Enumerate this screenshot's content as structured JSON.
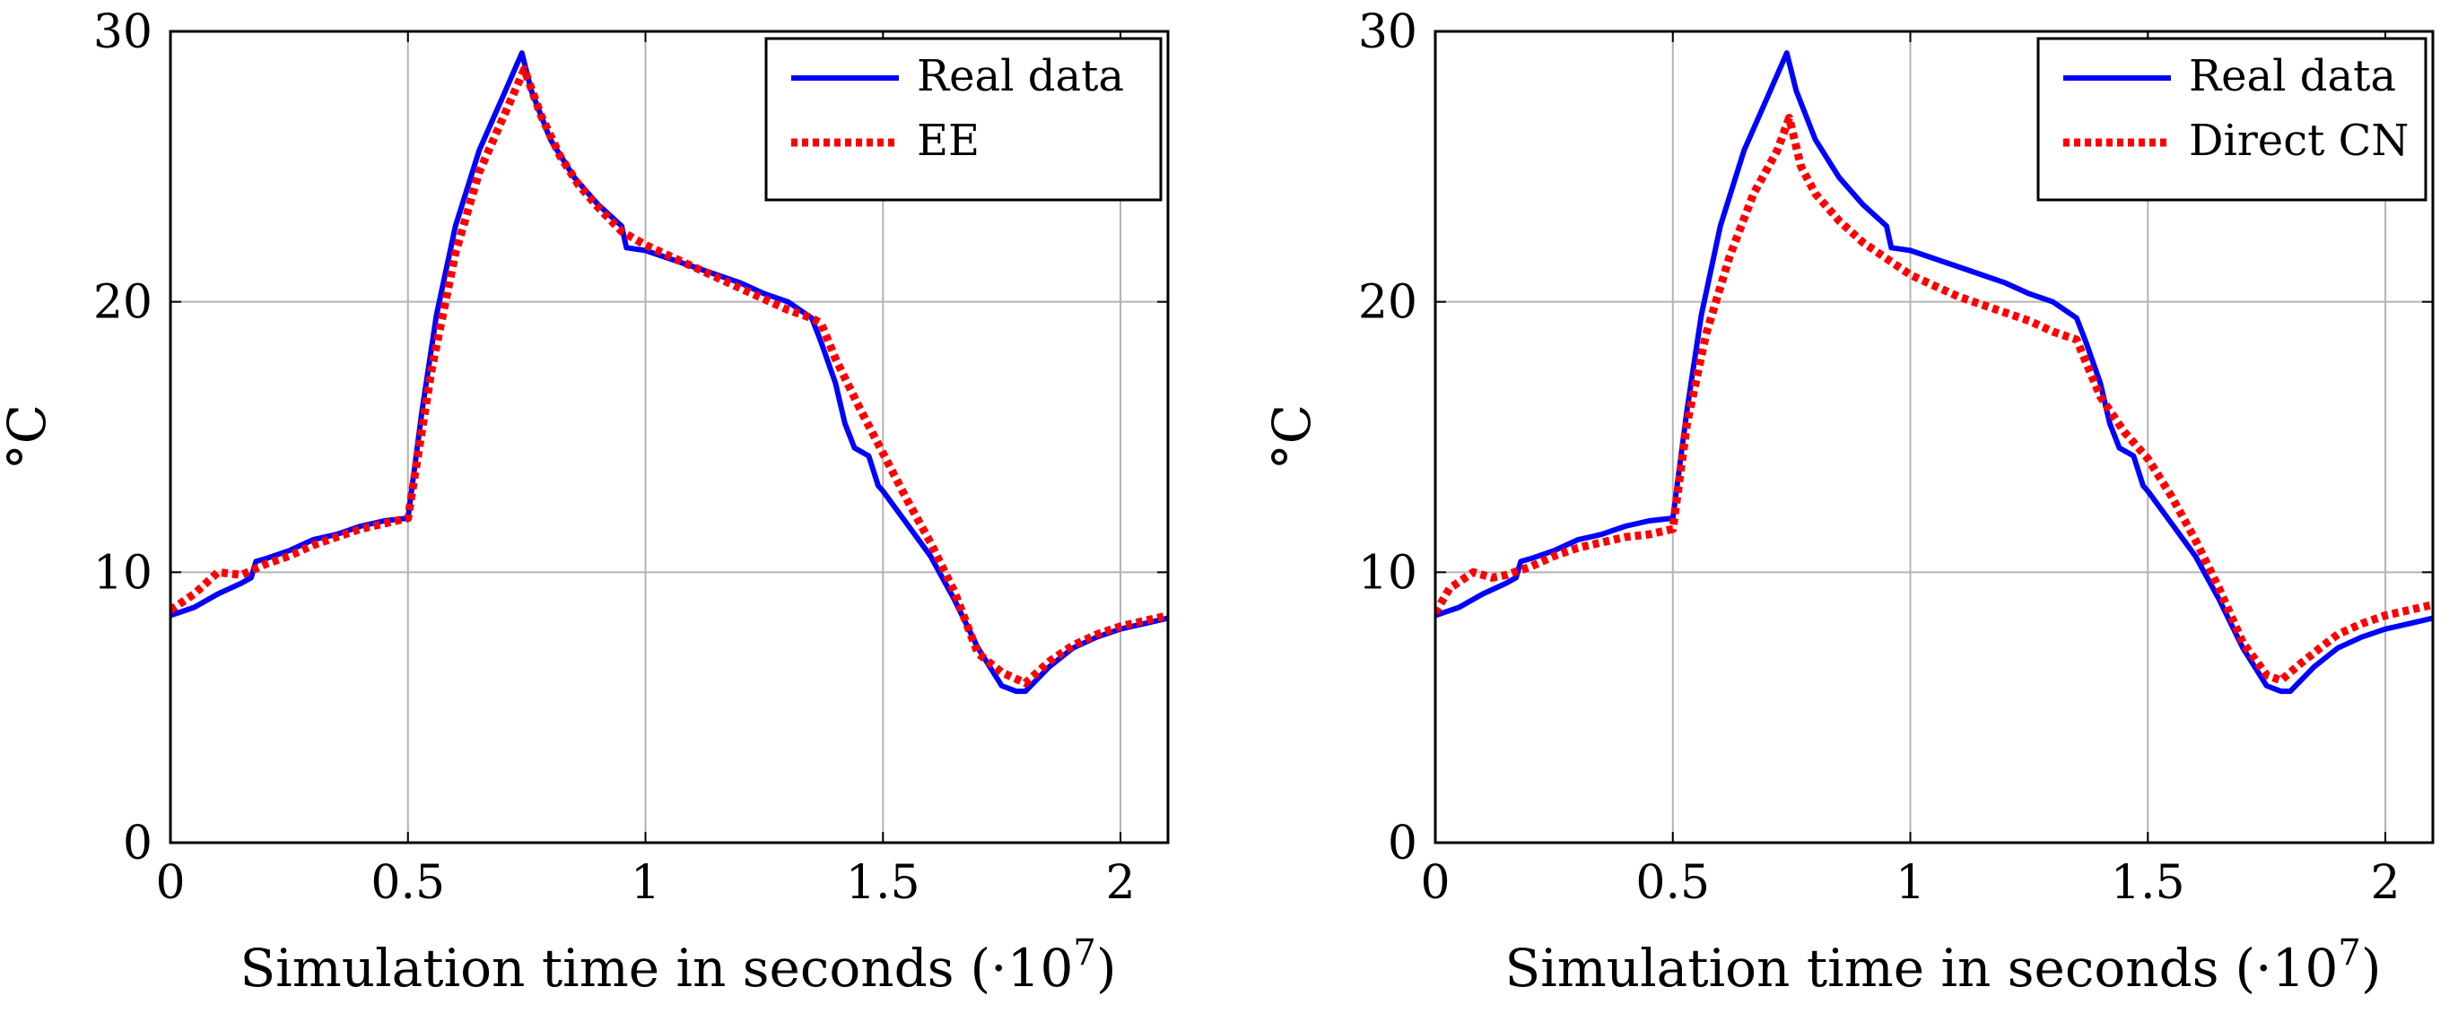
{
  "chart_data": [
    {
      "type": "line",
      "xlabel": "Simulation time in seconds",
      "xlabel_suffix": "(·10",
      "xlabel_exp": "7",
      "xlabel_close": ")",
      "ylabel": "°C",
      "xlim": [
        0,
        2.1
      ],
      "ylim": [
        0,
        30
      ],
      "xticks": [
        0,
        0.5,
        1,
        1.5,
        2
      ],
      "xtick_labels": [
        "0",
        "0.5",
        "1",
        "1.5",
        "2"
      ],
      "yticks": [
        0,
        10,
        20,
        30
      ],
      "ytick_labels": [
        "0",
        "10",
        "20",
        "30"
      ],
      "grid": true,
      "legend_position": "top-right",
      "series": [
        {
          "name": "Real data",
          "color": "#0000ff",
          "style": "solid",
          "x": [
            0,
            0.05,
            0.1,
            0.15,
            0.17,
            0.18,
            0.2,
            0.25,
            0.3,
            0.35,
            0.4,
            0.45,
            0.5,
            0.53,
            0.56,
            0.6,
            0.65,
            0.7,
            0.74,
            0.76,
            0.8,
            0.85,
            0.9,
            0.95,
            0.96,
            1.0,
            1.05,
            1.1,
            1.15,
            1.2,
            1.25,
            1.3,
            1.35,
            1.37,
            1.4,
            1.42,
            1.44,
            1.47,
            1.49,
            1.5,
            1.55,
            1.6,
            1.65,
            1.7,
            1.75,
            1.78,
            1.8,
            1.85,
            1.9,
            1.95,
            2.0,
            2.05,
            2.1
          ],
          "y": [
            8.4,
            8.7,
            9.2,
            9.6,
            9.8,
            10.4,
            10.5,
            10.8,
            11.2,
            11.4,
            11.7,
            11.9,
            12.0,
            16.0,
            19.5,
            22.8,
            25.6,
            27.6,
            29.2,
            27.8,
            26.0,
            24.6,
            23.6,
            22.8,
            22.0,
            21.9,
            21.6,
            21.3,
            21.0,
            20.7,
            20.3,
            20.0,
            19.4,
            18.5,
            17.0,
            15.5,
            14.6,
            14.3,
            13.2,
            13.0,
            11.8,
            10.6,
            9.0,
            7.2,
            5.8,
            5.6,
            5.6,
            6.5,
            7.2,
            7.6,
            7.9,
            8.1,
            8.3
          ]
        },
        {
          "name": "EE",
          "color": "#ff0000",
          "style": "dotted",
          "x": [
            0,
            0.05,
            0.1,
            0.15,
            0.2,
            0.25,
            0.3,
            0.35,
            0.4,
            0.45,
            0.5,
            0.55,
            0.6,
            0.65,
            0.7,
            0.745,
            0.78,
            0.82,
            0.86,
            0.9,
            0.95,
            1.0,
            1.05,
            1.1,
            1.15,
            1.2,
            1.25,
            1.3,
            1.35,
            1.37,
            1.4,
            1.45,
            1.5,
            1.55,
            1.6,
            1.65,
            1.7,
            1.75,
            1.8,
            1.85,
            1.9,
            1.95,
            2.0,
            2.05,
            2.1
          ],
          "y": [
            8.6,
            9.2,
            10.0,
            9.9,
            10.3,
            10.6,
            11.0,
            11.3,
            11.6,
            11.8,
            12.0,
            17.5,
            21.8,
            24.8,
            26.8,
            28.6,
            26.9,
            25.4,
            24.3,
            23.5,
            22.6,
            22.1,
            21.7,
            21.3,
            20.9,
            20.5,
            20.1,
            19.7,
            19.4,
            19.2,
            17.9,
            16.1,
            14.4,
            12.7,
            11.1,
            9.3,
            7.0,
            6.3,
            5.9,
            6.7,
            7.3,
            7.7,
            8.0,
            8.2,
            8.4
          ]
        }
      ]
    },
    {
      "type": "line",
      "xlabel": "Simulation time in seconds",
      "xlabel_suffix": "(·10",
      "xlabel_exp": "7",
      "xlabel_close": ")",
      "ylabel": "°C",
      "xlim": [
        0,
        2.1
      ],
      "ylim": [
        0,
        30
      ],
      "xticks": [
        0,
        0.5,
        1,
        1.5,
        2
      ],
      "xtick_labels": [
        "0",
        "0.5",
        "1",
        "1.5",
        "2"
      ],
      "yticks": [
        0,
        10,
        20,
        30
      ],
      "ytick_labels": [
        "0",
        "10",
        "20",
        "30"
      ],
      "grid": true,
      "legend_position": "top-right",
      "series": [
        {
          "name": "Real data",
          "color": "#0000ff",
          "style": "solid",
          "x": [
            0,
            0.05,
            0.1,
            0.15,
            0.17,
            0.18,
            0.2,
            0.25,
            0.3,
            0.35,
            0.4,
            0.45,
            0.5,
            0.53,
            0.56,
            0.6,
            0.65,
            0.7,
            0.74,
            0.76,
            0.8,
            0.85,
            0.9,
            0.95,
            0.96,
            1.0,
            1.05,
            1.1,
            1.15,
            1.2,
            1.25,
            1.3,
            1.35,
            1.37,
            1.4,
            1.42,
            1.44,
            1.47,
            1.49,
            1.5,
            1.55,
            1.6,
            1.65,
            1.7,
            1.75,
            1.78,
            1.8,
            1.85,
            1.9,
            1.95,
            2.0,
            2.05,
            2.1
          ],
          "y": [
            8.4,
            8.7,
            9.2,
            9.6,
            9.8,
            10.4,
            10.5,
            10.8,
            11.2,
            11.4,
            11.7,
            11.9,
            12.0,
            16.0,
            19.5,
            22.8,
            25.6,
            27.6,
            29.2,
            27.8,
            26.0,
            24.6,
            23.6,
            22.8,
            22.0,
            21.9,
            21.6,
            21.3,
            21.0,
            20.7,
            20.3,
            20.0,
            19.4,
            18.5,
            17.0,
            15.5,
            14.6,
            14.3,
            13.2,
            13.0,
            11.8,
            10.6,
            9.0,
            7.2,
            5.8,
            5.6,
            5.6,
            6.5,
            7.2,
            7.6,
            7.9,
            8.1,
            8.3
          ]
        },
        {
          "name": "Direct CN",
          "color": "#ff0000",
          "style": "dotted",
          "x": [
            0,
            0.03,
            0.08,
            0.12,
            0.15,
            0.2,
            0.25,
            0.3,
            0.35,
            0.4,
            0.45,
            0.5,
            0.53,
            0.57,
            0.62,
            0.67,
            0.72,
            0.745,
            0.77,
            0.8,
            0.85,
            0.9,
            0.95,
            1.0,
            1.05,
            1.1,
            1.15,
            1.2,
            1.25,
            1.3,
            1.35,
            1.4,
            1.45,
            1.5,
            1.55,
            1.6,
            1.65,
            1.7,
            1.75,
            1.78,
            1.82,
            1.87,
            1.9,
            1.95,
            2.0,
            2.05,
            2.1
          ],
          "y": [
            8.5,
            9.4,
            10.0,
            9.8,
            9.9,
            10.2,
            10.6,
            10.9,
            11.1,
            11.3,
            11.4,
            11.6,
            15.5,
            18.8,
            21.7,
            24.0,
            25.6,
            26.8,
            25.0,
            24.0,
            23.0,
            22.2,
            21.6,
            21.0,
            20.6,
            20.2,
            19.9,
            19.6,
            19.3,
            18.9,
            18.6,
            16.5,
            15.2,
            14.2,
            12.8,
            11.2,
            9.4,
            7.4,
            6.2,
            6.0,
            6.6,
            7.3,
            7.7,
            8.1,
            8.4,
            8.6,
            8.8
          ]
        }
      ]
    }
  ]
}
